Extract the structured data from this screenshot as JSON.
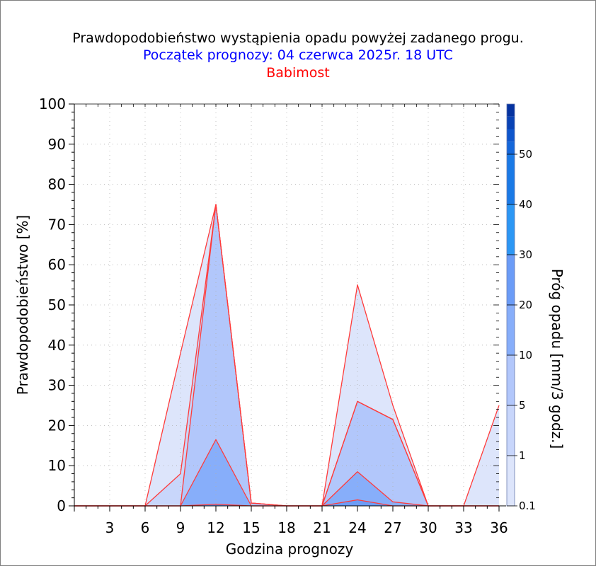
{
  "title": "Prawdopodobieństwo wystąpienia opadu powyżej zadanego progu.",
  "subtitle": "Początek prognozy: 04 czerwca 2025r. 18 UTC",
  "location": "Babimost",
  "colors": {
    "title": "#000000",
    "subtitle": "#0000ff",
    "location": "#ff0000",
    "outline": "#ff3b3b",
    "thr_0_1": "#dde5fb",
    "thr_1": "#c8d6fb",
    "thr_5": "#b2c7fb",
    "thr_10": "#87aefa"
  },
  "chart_data": {
    "type": "area",
    "title": "Prawdopodobieństwo wystąpienia opadu powyżej zadanego progu.",
    "subtitle": "Początek prognozy: 04 czerwca 2025r. 18 UTC",
    "xlabel": "Godzina prognozy",
    "ylabel": "Prawdopodobieństwo [%]",
    "colorbar_label": "Próg opadu [mm/3 godz.]",
    "xlim": [
      0,
      36
    ],
    "ylim": [
      0,
      100
    ],
    "x_ticks": [
      3,
      6,
      9,
      12,
      15,
      18,
      21,
      24,
      27,
      30,
      33,
      36
    ],
    "y_ticks": [
      0,
      10,
      20,
      30,
      40,
      50,
      60,
      70,
      80,
      90,
      100
    ],
    "grid": true,
    "x": [
      0,
      3,
      6,
      9,
      12,
      15,
      18,
      21,
      24,
      27,
      30,
      33,
      36
    ],
    "series": [
      {
        "name": "0.1",
        "color": "#dde5fb",
        "values": [
          0,
          0,
          0,
          38,
          75,
          0.7,
          0,
          0,
          55,
          25,
          0,
          0,
          25
        ]
      },
      {
        "name": "1",
        "color": "#c8d6fb",
        "values": [
          0,
          0,
          0,
          8,
          75,
          0.7,
          0,
          0,
          26,
          21.5,
          0,
          0,
          0
        ]
      },
      {
        "name": "5",
        "color": "#b2c7fb",
        "values": [
          0,
          0,
          0,
          0,
          75,
          0.7,
          0,
          0,
          26,
          21.5,
          0,
          0,
          0
        ]
      },
      {
        "name": "10",
        "color": "#87aefa",
        "values": [
          0,
          0,
          0,
          0,
          16.5,
          0,
          0,
          0,
          8.5,
          1,
          0,
          0,
          0
        ]
      },
      {
        "name": "20",
        "color": "#6b9cf7",
        "values": [
          0,
          0,
          0,
          0,
          0.4,
          0,
          0,
          0,
          1.5,
          0,
          0,
          0,
          0
        ]
      }
    ],
    "colorbar": {
      "labels": [
        "0.1",
        "1",
        "5",
        "10",
        "20",
        "30",
        "40",
        "50"
      ],
      "colors": [
        "#dde5fb",
        "#c8d6fb",
        "#b2c7fb",
        "#87aefa",
        "#6b9cf7",
        "#2c97f4",
        "#1a7ae6",
        "#1467da",
        "#0e56cc",
        "#0943b5",
        "#0533a0"
      ]
    }
  }
}
